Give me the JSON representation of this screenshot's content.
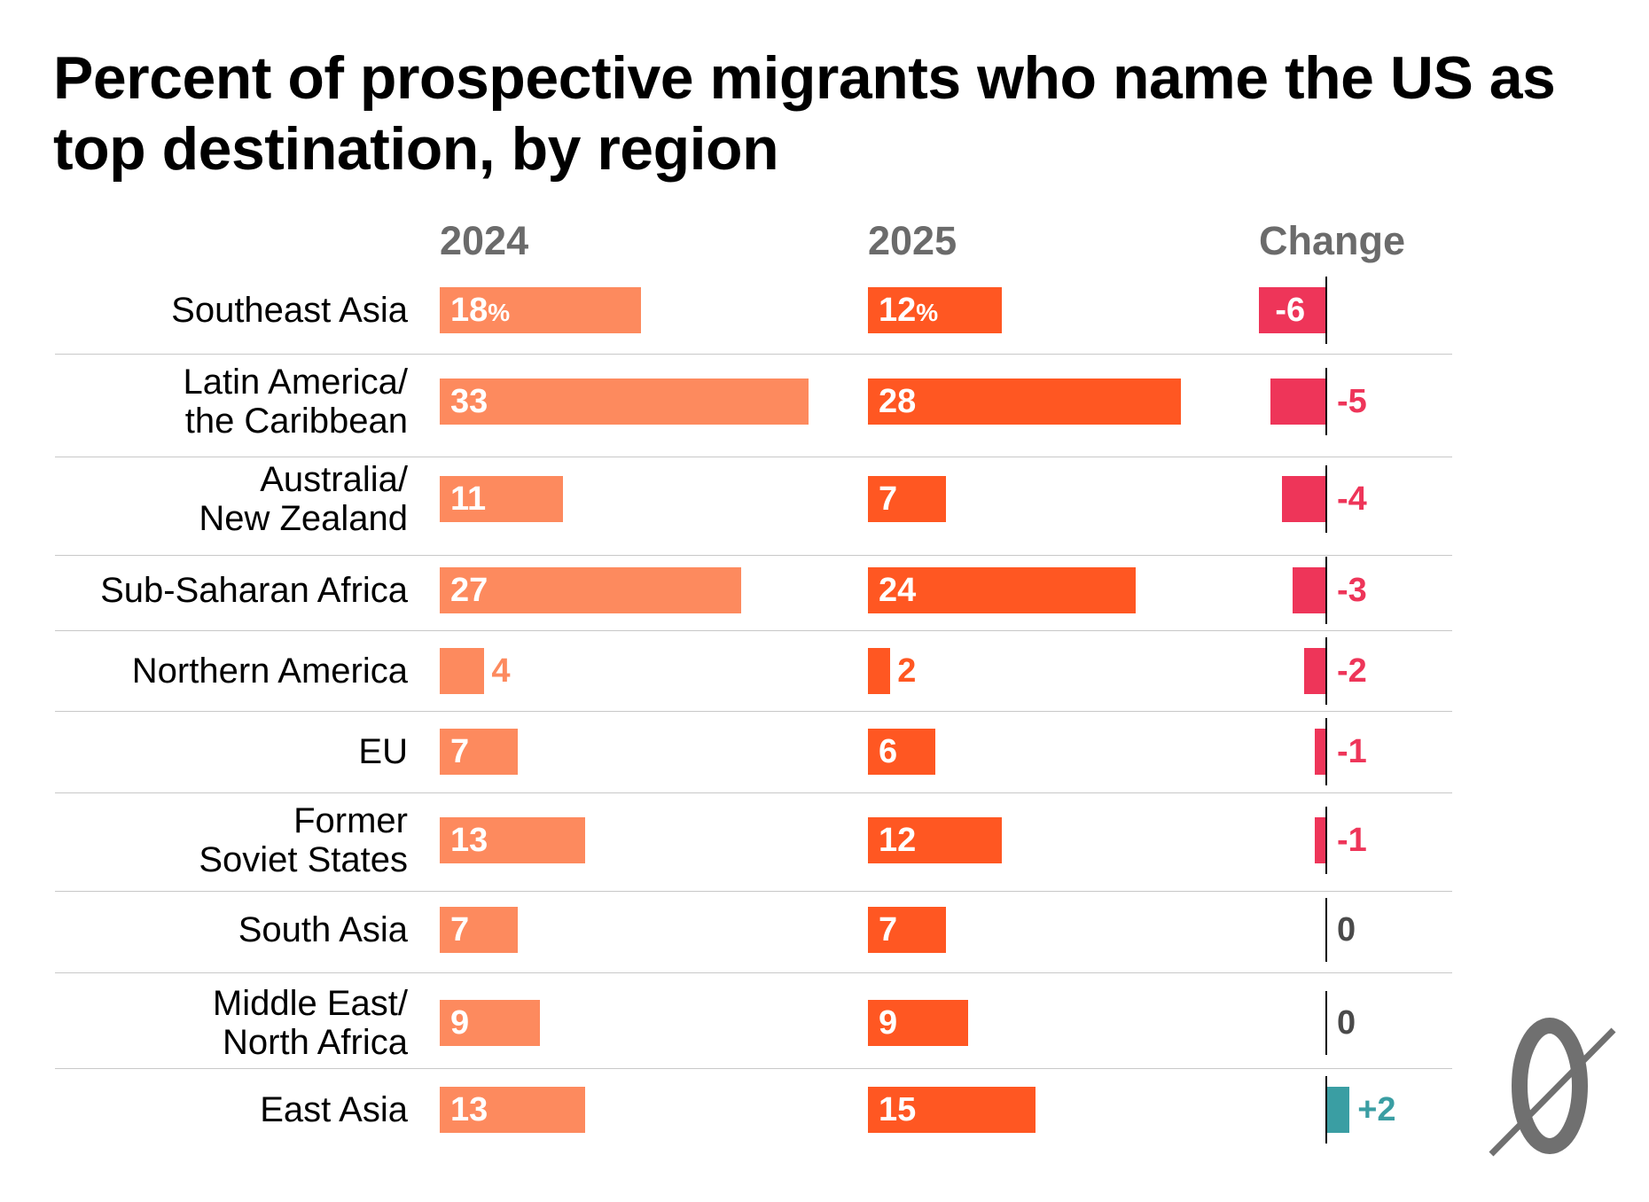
{
  "title": "Percent of prospective migrants who name the US as top destination, by region",
  "colors": {
    "bar_2024": "#fd8a5e",
    "bar_2025": "#ff5722",
    "change_negative": "#ee3559",
    "change_positive": "#3a9ea3",
    "change_zero": "#4a4a4a",
    "column_header": "#6b6b6b",
    "logo": "#707070"
  },
  "chart_data": {
    "type": "table",
    "title": "Percent of prospective migrants who name the US as top destination, by region",
    "columns": [
      "2024",
      "2025",
      "Change"
    ],
    "percent_suffix": "%",
    "series": [
      {
        "name": "2024",
        "values": [
          18,
          33,
          11,
          27,
          4,
          7,
          13,
          7,
          9,
          13
        ]
      },
      {
        "name": "2025",
        "values": [
          12,
          28,
          7,
          24,
          2,
          6,
          12,
          7,
          9,
          15
        ]
      },
      {
        "name": "Change",
        "values": [
          -6,
          -5,
          -4,
          -3,
          -2,
          -1,
          -1,
          0,
          0,
          2
        ]
      }
    ],
    "rows": [
      {
        "region": "Southeast Asia",
        "v2024": 18,
        "v2025": 12,
        "change": -6,
        "label2024": "18",
        "label2025": "12",
        "changeLabel": "-6"
      },
      {
        "region": "Latin America/\nthe Caribbean",
        "v2024": 33,
        "v2025": 28,
        "change": -5,
        "label2024": "33",
        "label2025": "28",
        "changeLabel": "-5"
      },
      {
        "region": "Australia/\nNew Zealand",
        "v2024": 11,
        "v2025": 7,
        "change": -4,
        "label2024": "11",
        "label2025": "7",
        "changeLabel": "-4"
      },
      {
        "region": "Sub-Saharan Africa",
        "v2024": 27,
        "v2025": 24,
        "change": -3,
        "label2024": "27",
        "label2025": "24",
        "changeLabel": "-3"
      },
      {
        "region": "Northern America",
        "v2024": 4,
        "v2025": 2,
        "change": -2,
        "label2024": "4",
        "label2025": "2",
        "changeLabel": "-2"
      },
      {
        "region": "EU",
        "v2024": 7,
        "v2025": 6,
        "change": -1,
        "label2024": "7",
        "label2025": "6",
        "changeLabel": "-1"
      },
      {
        "region": "Former\nSoviet States",
        "v2024": 13,
        "v2025": 12,
        "change": -1,
        "label2024": "13",
        "label2025": "12",
        "changeLabel": "-1"
      },
      {
        "region": "South Asia",
        "v2024": 7,
        "v2025": 7,
        "change": 0,
        "label2024": "7",
        "label2025": "7",
        "changeLabel": "0"
      },
      {
        "region": "Middle East/\nNorth Africa",
        "v2024": 9,
        "v2025": 9,
        "change": 0,
        "label2024": "9",
        "label2025": "9",
        "changeLabel": "0"
      },
      {
        "region": "East Asia",
        "v2024": 13,
        "v2025": 15,
        "change": 2,
        "label2024": "13",
        "label2025": "15",
        "changeLabel": "+2"
      }
    ]
  }
}
